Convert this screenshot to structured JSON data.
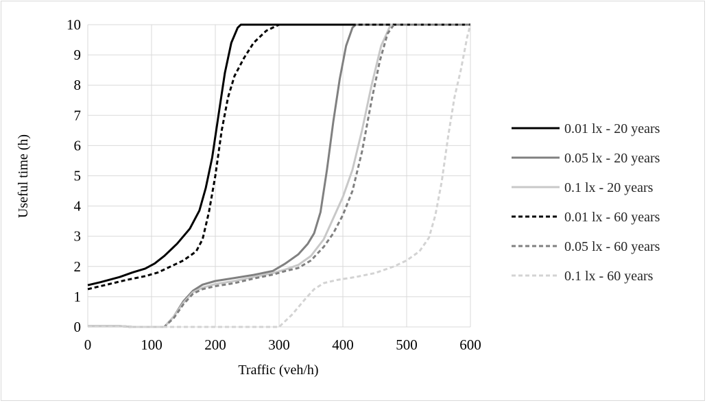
{
  "chart_data": {
    "type": "line",
    "title": "",
    "xlabel": "Traffic (veh/h)",
    "ylabel": "Useful time (h)",
    "xlim": [
      0,
      600
    ],
    "ylim": [
      0,
      10
    ],
    "x_ticks": [
      "0",
      "100",
      "200",
      "300",
      "400",
      "500",
      "600"
    ],
    "y_ticks": [
      "0",
      "1",
      "2",
      "3",
      "4",
      "5",
      "6",
      "7",
      "8",
      "9",
      "10"
    ],
    "grid": true,
    "legend_position": "right",
    "series": [
      {
        "name": "0.01 lx - 20 years",
        "color": "#000000",
        "dash": "solid",
        "points": [
          [
            0,
            1.38
          ],
          [
            20,
            1.48
          ],
          [
            50,
            1.65
          ],
          [
            70,
            1.8
          ],
          [
            90,
            1.93
          ],
          [
            105,
            2.1
          ],
          [
            120,
            2.35
          ],
          [
            140,
            2.75
          ],
          [
            160,
            3.25
          ],
          [
            175,
            3.85
          ],
          [
            185,
            4.6
          ],
          [
            195,
            5.6
          ],
          [
            205,
            7.0
          ],
          [
            215,
            8.4
          ],
          [
            225,
            9.4
          ],
          [
            235,
            9.9
          ],
          [
            240,
            10
          ],
          [
            600,
            10
          ]
        ]
      },
      {
        "name": "0.05 lx - 20 years",
        "color": "#808080",
        "dash": "solid",
        "points": [
          [
            0,
            0.03
          ],
          [
            50,
            0.03
          ],
          [
            70,
            0
          ],
          [
            120,
            0
          ],
          [
            135,
            0.35
          ],
          [
            150,
            0.85
          ],
          [
            165,
            1.2
          ],
          [
            180,
            1.4
          ],
          [
            200,
            1.52
          ],
          [
            230,
            1.62
          ],
          [
            260,
            1.72
          ],
          [
            290,
            1.85
          ],
          [
            310,
            2.1
          ],
          [
            330,
            2.4
          ],
          [
            345,
            2.75
          ],
          [
            355,
            3.1
          ],
          [
            365,
            3.8
          ],
          [
            375,
            5.2
          ],
          [
            385,
            6.8
          ],
          [
            395,
            8.2
          ],
          [
            405,
            9.3
          ],
          [
            415,
            9.9
          ],
          [
            420,
            10
          ],
          [
            600,
            10
          ]
        ]
      },
      {
        "name": "0.1 lx - 20 years",
        "color": "#c8c8c8",
        "dash": "solid",
        "points": [
          [
            0,
            0.03
          ],
          [
            50,
            0.03
          ],
          [
            70,
            0
          ],
          [
            120,
            0
          ],
          [
            135,
            0.35
          ],
          [
            150,
            0.8
          ],
          [
            165,
            1.15
          ],
          [
            180,
            1.3
          ],
          [
            200,
            1.42
          ],
          [
            230,
            1.52
          ],
          [
            260,
            1.65
          ],
          [
            290,
            1.78
          ],
          [
            310,
            1.9
          ],
          [
            330,
            2.05
          ],
          [
            350,
            2.35
          ],
          [
            370,
            2.9
          ],
          [
            385,
            3.6
          ],
          [
            400,
            4.3
          ],
          [
            415,
            5.2
          ],
          [
            430,
            6.5
          ],
          [
            445,
            8.0
          ],
          [
            460,
            9.3
          ],
          [
            475,
            10
          ],
          [
            600,
            10
          ]
        ]
      },
      {
        "name": "0.01 lx - 60 years",
        "color": "#000000",
        "dash": "6,4",
        "points": [
          [
            0,
            1.25
          ],
          [
            30,
            1.4
          ],
          [
            60,
            1.55
          ],
          [
            90,
            1.68
          ],
          [
            110,
            1.8
          ],
          [
            130,
            2.0
          ],
          [
            150,
            2.2
          ],
          [
            170,
            2.5
          ],
          [
            180,
            2.9
          ],
          [
            190,
            3.8
          ],
          [
            200,
            5.0
          ],
          [
            210,
            6.5
          ],
          [
            220,
            7.6
          ],
          [
            230,
            8.3
          ],
          [
            245,
            8.9
          ],
          [
            260,
            9.4
          ],
          [
            280,
            9.8
          ],
          [
            300,
            10
          ],
          [
            600,
            10
          ]
        ]
      },
      {
        "name": "0.05 lx - 60 years",
        "color": "#808080",
        "dash": "6,4",
        "points": [
          [
            0,
            0.03
          ],
          [
            50,
            0.03
          ],
          [
            70,
            0
          ],
          [
            120,
            0
          ],
          [
            135,
            0.3
          ],
          [
            150,
            0.75
          ],
          [
            165,
            1.1
          ],
          [
            180,
            1.25
          ],
          [
            200,
            1.35
          ],
          [
            230,
            1.45
          ],
          [
            260,
            1.6
          ],
          [
            290,
            1.73
          ],
          [
            310,
            1.85
          ],
          [
            330,
            1.95
          ],
          [
            350,
            2.2
          ],
          [
            370,
            2.65
          ],
          [
            385,
            3.1
          ],
          [
            400,
            3.7
          ],
          [
            415,
            4.5
          ],
          [
            430,
            5.8
          ],
          [
            445,
            7.5
          ],
          [
            458,
            8.8
          ],
          [
            470,
            9.7
          ],
          [
            480,
            10
          ],
          [
            600,
            10
          ]
        ]
      },
      {
        "name": "0.1 lx - 60 years",
        "color": "#d3d3d3",
        "dash": "6,4",
        "points": [
          [
            0,
            0.03
          ],
          [
            50,
            0.03
          ],
          [
            70,
            0
          ],
          [
            300,
            0
          ],
          [
            320,
            0.4
          ],
          [
            340,
            0.9
          ],
          [
            355,
            1.25
          ],
          [
            370,
            1.45
          ],
          [
            390,
            1.55
          ],
          [
            420,
            1.65
          ],
          [
            450,
            1.78
          ],
          [
            480,
            2.0
          ],
          [
            500,
            2.2
          ],
          [
            520,
            2.5
          ],
          [
            535,
            2.95
          ],
          [
            545,
            3.7
          ],
          [
            555,
            4.8
          ],
          [
            565,
            6.3
          ],
          [
            575,
            7.6
          ],
          [
            585,
            8.5
          ],
          [
            595,
            9.6
          ],
          [
            600,
            10
          ]
        ]
      }
    ]
  }
}
